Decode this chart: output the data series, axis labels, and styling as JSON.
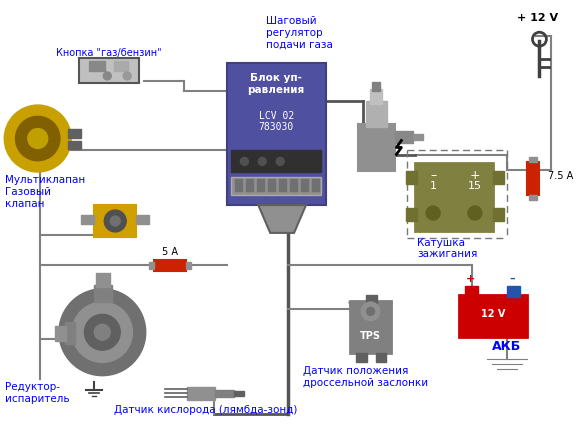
{
  "title": "",
  "bg_color": "#ffffff",
  "labels": {
    "knopka": "Кнопка \"газ/бензин\"",
    "multiklapan": "Мультиклапан",
    "gazoviy_klapan": "Газовый\nклапан",
    "shagoviy": "Шаговый\nрегулятор\nподачи газа",
    "blok": "Блок уп-\nравления",
    "blok_model": "LCV 02\n783030",
    "katushka": "Катушка\nзажигания",
    "reduktor": "Редуктор-\nиспаритель",
    "datchik_tps": "Датчик положения\nдроссельной заслонки",
    "datchik_o2": "Датчик кислорода (лямбда-зонд)",
    "akb": "АКБ",
    "plus12v": "+ 12 V",
    "fuse5a": "5 А",
    "fuse75a": "7.5 А",
    "tps_label": "TPS"
  },
  "colors": {
    "blue_text": "#0000FF",
    "wire": "#808080",
    "wire_dark": "#555555",
    "blok_bg": "#5050a0",
    "blok_border": "#404080",
    "katushka_bg": "#808040",
    "akb_red": "#cc0000",
    "akb_blue": "#0000aa",
    "fuse_body": "#cc2200",
    "key_color": "#404040"
  },
  "fig_width": 5.78,
  "fig_height": 4.37,
  "dpi": 100
}
